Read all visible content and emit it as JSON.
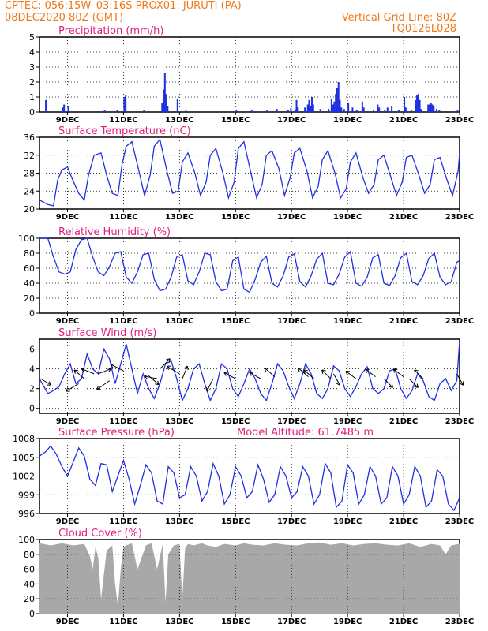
{
  "header": {
    "left_line1": "CPTEC:   056:15W–03:16S   PROX01: JURUTI (PA)",
    "left_line2": "08DEC2020 80Z (GMT)",
    "right_line2": "Vertical Grid Line: 80Z",
    "right_line3": "TQ0126L028"
  },
  "colors": {
    "header_text": "#f07818",
    "panel_title": "#e0207a",
    "series_line": "#2030e0",
    "bar": "#2030e0",
    "cloud_fill": "#a8a8a8",
    "arrow": "#000000"
  },
  "shared_x_tick_labels": [
    "9DEC",
    "11DEC",
    "13DEC",
    "15DEC",
    "17DEC",
    "19DEC",
    "21DEC",
    "23DEC"
  ],
  "chart_data": [
    {
      "id": "precip",
      "type": "bar",
      "title": "Precipitation  (mm/h)",
      "x_start_day": 8.3,
      "step_days": 0.05,
      "xlim": [
        8.0,
        23.0
      ],
      "ylim": [
        0,
        5
      ],
      "yticks": [
        0,
        1,
        2,
        3,
        4,
        5
      ],
      "bars": [
        [
          8.2,
          0.8
        ],
        [
          8.8,
          0.3
        ],
        [
          8.85,
          0.5
        ],
        [
          9.0,
          0.4
        ],
        [
          10.3,
          0.1
        ],
        [
          10.75,
          0.15
        ],
        [
          11.0,
          1.0
        ],
        [
          11.05,
          1.1
        ],
        [
          11.7,
          0.1
        ],
        [
          12.35,
          0.6
        ],
        [
          12.4,
          1.5
        ],
        [
          12.45,
          2.6
        ],
        [
          12.5,
          1.2
        ],
        [
          12.55,
          0.4
        ],
        [
          12.9,
          0.9
        ],
        [
          13.2,
          0.1
        ],
        [
          15.0,
          0.1
        ],
        [
          15.55,
          0.1
        ],
        [
          16.1,
          0.1
        ],
        [
          16.45,
          0.2
        ],
        [
          16.85,
          0.15
        ],
        [
          16.95,
          0.25
        ],
        [
          17.1,
          0.1
        ],
        [
          17.15,
          0.8
        ],
        [
          17.2,
          0.3
        ],
        [
          17.45,
          0.3
        ],
        [
          17.55,
          0.5
        ],
        [
          17.6,
          0.8
        ],
        [
          17.65,
          0.4
        ],
        [
          17.7,
          1.0
        ],
        [
          17.75,
          0.5
        ],
        [
          18.0,
          0.2
        ],
        [
          18.3,
          0.2
        ],
        [
          18.4,
          0.9
        ],
        [
          18.45,
          0.5
        ],
        [
          18.5,
          0.7
        ],
        [
          18.55,
          1.2
        ],
        [
          18.6,
          1.6
        ],
        [
          18.65,
          2.0
        ],
        [
          18.7,
          0.8
        ],
        [
          18.75,
          0.3
        ],
        [
          18.85,
          0.2
        ],
        [
          19.0,
          0.6
        ],
        [
          19.15,
          0.3
        ],
        [
          19.3,
          0.15
        ],
        [
          19.5,
          0.7
        ],
        [
          19.55,
          0.3
        ],
        [
          19.9,
          0.1
        ],
        [
          20.05,
          0.5
        ],
        [
          20.1,
          0.3
        ],
        [
          20.3,
          0.1
        ],
        [
          20.4,
          0.3
        ],
        [
          20.55,
          0.4
        ],
        [
          20.8,
          0.15
        ],
        [
          21.0,
          1.0
        ],
        [
          21.05,
          0.3
        ],
        [
          21.25,
          0.1
        ],
        [
          21.4,
          0.8
        ],
        [
          21.45,
          1.1
        ],
        [
          21.5,
          1.2
        ],
        [
          21.55,
          0.8
        ],
        [
          21.6,
          0.2
        ],
        [
          21.85,
          0.5
        ],
        [
          21.9,
          0.5
        ],
        [
          21.95,
          0.6
        ],
        [
          22.0,
          0.5
        ],
        [
          22.05,
          0.4
        ],
        [
          22.15,
          0.2
        ],
        [
          22.25,
          0.15
        ],
        [
          22.9,
          0.1
        ]
      ]
    },
    {
      "id": "temp",
      "type": "line",
      "title": "Surface Temperature  (nC)",
      "xlim": [
        8.0,
        23.0
      ],
      "ylim": [
        20,
        36
      ],
      "yticks": [
        20,
        24,
        28,
        32,
        36
      ],
      "x": [
        8.0,
        8.3,
        8.5,
        8.65,
        8.8,
        9.0,
        9.15,
        9.4,
        9.6,
        9.75,
        9.95,
        10.2,
        10.4,
        10.6,
        10.8,
        10.95,
        11.1,
        11.3,
        11.55,
        11.75,
        11.95,
        12.1,
        12.3,
        12.55,
        12.75,
        12.95,
        13.1,
        13.3,
        13.55,
        13.75,
        13.95,
        14.1,
        14.3,
        14.55,
        14.75,
        14.95,
        15.1,
        15.3,
        15.55,
        15.75,
        15.95,
        16.1,
        16.3,
        16.55,
        16.75,
        16.95,
        17.1,
        17.3,
        17.55,
        17.75,
        17.95,
        18.1,
        18.3,
        18.55,
        18.75,
        18.95,
        19.1,
        19.3,
        19.55,
        19.75,
        19.95,
        20.1,
        20.3,
        20.55,
        20.75,
        20.95,
        21.1,
        21.3,
        21.55,
        21.75,
        21.95,
        22.1,
        22.3,
        22.55,
        22.75,
        22.95,
        23.0
      ],
      "y": [
        22.0,
        21.0,
        20.7,
        26.5,
        28.7,
        29.4,
        27.0,
        23.5,
        22.0,
        27.5,
        32.0,
        32.5,
        27.5,
        23.5,
        23.0,
        30.0,
        34.0,
        35.0,
        28.5,
        23.0,
        27.5,
        34.0,
        35.5,
        28.5,
        23.5,
        24.0,
        30.5,
        32.5,
        28.0,
        23.0,
        26.0,
        32.0,
        33.5,
        28.0,
        22.5,
        26.0,
        33.5,
        35.0,
        28.0,
        22.5,
        25.5,
        32.0,
        33.0,
        29.0,
        23.0,
        27.0,
        32.5,
        33.5,
        28.5,
        22.5,
        25.0,
        31.0,
        33.0,
        28.0,
        22.5,
        24.5,
        30.5,
        32.5,
        27.0,
        23.5,
        25.5,
        31.0,
        32.0,
        27.0,
        23.0,
        26.0,
        31.5,
        32.0,
        27.5,
        23.5,
        25.5,
        31.0,
        31.5,
        26.5,
        23.0,
        28.5,
        32.5
      ]
    },
    {
      "id": "rh",
      "type": "line",
      "title": "Relative Humidity  (%)",
      "xlim": [
        8.0,
        23.0
      ],
      "ylim": [
        0,
        100
      ],
      "yticks": [
        0,
        20,
        40,
        60,
        80,
        100
      ],
      "x": [
        8.0,
        8.1,
        8.3,
        8.5,
        8.7,
        8.9,
        9.1,
        9.3,
        9.5,
        9.7,
        9.9,
        10.1,
        10.3,
        10.5,
        10.7,
        10.9,
        11.1,
        11.3,
        11.5,
        11.7,
        11.9,
        12.1,
        12.3,
        12.5,
        12.7,
        12.9,
        13.1,
        13.3,
        13.5,
        13.7,
        13.9,
        14.1,
        14.3,
        14.5,
        14.7,
        14.9,
        15.1,
        15.3,
        15.5,
        15.7,
        15.9,
        16.1,
        16.3,
        16.5,
        16.7,
        16.9,
        17.1,
        17.3,
        17.5,
        17.7,
        17.9,
        18.1,
        18.3,
        18.5,
        18.7,
        18.9,
        19.1,
        19.3,
        19.5,
        19.7,
        19.9,
        20.1,
        20.3,
        20.5,
        20.7,
        20.9,
        21.1,
        21.3,
        21.5,
        21.7,
        21.9,
        22.1,
        22.3,
        22.5,
        22.7,
        22.9,
        23.0
      ],
      "y": [
        100,
        100,
        100,
        75,
        55,
        52,
        55,
        85,
        98,
        100,
        75,
        55,
        50,
        62,
        80,
        82,
        48,
        40,
        55,
        78,
        80,
        45,
        30,
        32,
        48,
        75,
        78,
        43,
        38,
        55,
        80,
        78,
        42,
        30,
        32,
        70,
        75,
        32,
        28,
        45,
        68,
        76,
        40,
        35,
        50,
        75,
        79,
        42,
        35,
        50,
        72,
        80,
        40,
        38,
        52,
        75,
        82,
        40,
        36,
        48,
        74,
        78,
        40,
        37,
        50,
        74,
        80,
        42,
        38,
        50,
        73,
        80,
        48,
        38,
        42,
        68,
        70
      ]
    },
    {
      "id": "wind",
      "type": "line",
      "title": "Surface Wind  (m/s)",
      "xlim": [
        8.0,
        23.0
      ],
      "ylim": [
        -0.5,
        7
      ],
      "yticks": [
        0,
        2,
        4,
        6
      ],
      "x": [
        8.0,
        8.1,
        8.3,
        8.5,
        8.7,
        8.9,
        9.1,
        9.3,
        9.5,
        9.7,
        9.9,
        10.1,
        10.3,
        10.5,
        10.7,
        10.9,
        11.1,
        11.3,
        11.5,
        11.7,
        11.9,
        12.1,
        12.3,
        12.5,
        12.7,
        12.9,
        13.1,
        13.3,
        13.5,
        13.7,
        13.9,
        14.1,
        14.3,
        14.5,
        14.7,
        14.9,
        15.1,
        15.3,
        15.5,
        15.7,
        15.9,
        16.1,
        16.3,
        16.5,
        16.7,
        16.9,
        17.1,
        17.3,
        17.5,
        17.7,
        17.9,
        18.1,
        18.3,
        18.5,
        18.7,
        18.9,
        19.1,
        19.3,
        19.5,
        19.7,
        19.9,
        20.1,
        20.3,
        20.5,
        20.7,
        20.9,
        21.1,
        21.3,
        21.5,
        21.7,
        21.9,
        22.1,
        22.3,
        22.5,
        22.7,
        22.9,
        23.0
      ],
      "y": [
        3.0,
        2.5,
        1.5,
        1.8,
        2.2,
        3.5,
        4.5,
        2.5,
        3.0,
        5.5,
        4.0,
        3.5,
        6.0,
        5.0,
        2.5,
        4.5,
        6.5,
        4.0,
        1.5,
        3.5,
        2.0,
        1.0,
        2.5,
        4.5,
        4.8,
        3.0,
        0.8,
        2.0,
        4.0,
        4.5,
        2.5,
        0.8,
        2.0,
        4.5,
        4.0,
        2.0,
        1.2,
        2.5,
        4.0,
        3.0,
        1.5,
        0.8,
        2.5,
        4.5,
        3.8,
        2.2,
        1.0,
        2.5,
        4.5,
        3.5,
        1.5,
        1.0,
        2.0,
        4.3,
        3.8,
        2.0,
        1.2,
        2.2,
        3.5,
        4.2,
        2.0,
        1.5,
        2.0,
        3.8,
        4.0,
        2.0,
        1.0,
        1.8,
        3.5,
        2.8,
        1.2,
        0.8,
        2.5,
        3.0,
        1.8,
        2.8,
        6.8
      ]
    },
    {
      "id": "pressure",
      "type": "line",
      "title": "Surface Pressure  (hPa)",
      "annotation": "Model Altitude: 61.7485 m",
      "xlim": [
        8.0,
        23.0
      ],
      "ylim": [
        996,
        1008
      ],
      "yticks": [
        996,
        999,
        1002,
        1005,
        1008
      ],
      "x": [
        8.0,
        8.2,
        8.4,
        8.6,
        8.8,
        9.0,
        9.2,
        9.4,
        9.6,
        9.8,
        10.0,
        10.2,
        10.4,
        10.6,
        10.8,
        11.0,
        11.2,
        11.4,
        11.6,
        11.8,
        12.0,
        12.2,
        12.4,
        12.6,
        12.8,
        13.0,
        13.2,
        13.4,
        13.6,
        13.8,
        14.0,
        14.2,
        14.4,
        14.6,
        14.8,
        15.0,
        15.2,
        15.4,
        15.6,
        15.8,
        16.0,
        16.2,
        16.4,
        16.6,
        16.8,
        17.0,
        17.2,
        17.4,
        17.6,
        17.8,
        18.0,
        18.2,
        18.4,
        18.6,
        18.8,
        19.0,
        19.2,
        19.4,
        19.6,
        19.8,
        20.0,
        20.2,
        20.4,
        20.6,
        20.8,
        21.0,
        21.2,
        21.4,
        21.6,
        21.8,
        22.0,
        22.2,
        22.4,
        22.6,
        22.8,
        23.0
      ],
      "y": [
        1005.2,
        1005.8,
        1006.8,
        1005.5,
        1003.5,
        1002.0,
        1004.2,
        1006.5,
        1005.2,
        1001.5,
        1000.5,
        1004.0,
        1003.8,
        999.5,
        1002.0,
        1004.5,
        1001.5,
        997.5,
        1000.5,
        1003.8,
        1002.5,
        998.0,
        997.5,
        1003.5,
        1002.5,
        998.5,
        999.0,
        1003.5,
        1002.0,
        998.0,
        999.5,
        1004.0,
        1002.0,
        997.5,
        999.0,
        1003.5,
        1002.0,
        998.5,
        999.5,
        1003.8,
        1001.5,
        997.8,
        999.0,
        1003.5,
        1002.0,
        998.5,
        999.5,
        1003.5,
        1002.0,
        997.5,
        999.0,
        1004.0,
        1002.5,
        997.0,
        998.0,
        1003.8,
        1002.5,
        997.5,
        999.0,
        1003.5,
        1002.0,
        997.5,
        998.5,
        1003.5,
        1002.0,
        997.5,
        999.0,
        1003.5,
        1002.0,
        997.0,
        998.0,
        1003.0,
        1002.0,
        997.5,
        996.5,
        998.5
      ]
    },
    {
      "id": "cloud",
      "type": "area",
      "title": "Cloud Cover  (%)",
      "xlim": [
        8.0,
        23.0
      ],
      "ylim": [
        0,
        100
      ],
      "yticks": [
        0,
        20,
        40,
        60,
        80,
        100
      ],
      "x": [
        8.0,
        8.4,
        8.8,
        9.2,
        9.6,
        9.8,
        9.9,
        10.0,
        10.1,
        10.2,
        10.4,
        10.6,
        10.7,
        10.8,
        10.9,
        11.0,
        11.1,
        11.3,
        11.5,
        11.8,
        12.0,
        12.2,
        12.4,
        12.5,
        12.6,
        12.8,
        13.0,
        13.1,
        13.2,
        13.3,
        13.5,
        13.8,
        14.0,
        14.3,
        14.6,
        15.0,
        15.3,
        15.6,
        16.0,
        16.4,
        16.8,
        17.2,
        17.6,
        18.0,
        18.4,
        18.8,
        19.2,
        19.6,
        20.0,
        20.4,
        20.8,
        21.2,
        21.6,
        22.0,
        22.3,
        22.5,
        22.7,
        23.0
      ],
      "y": [
        95,
        92,
        95,
        92,
        94,
        78,
        60,
        90,
        75,
        20,
        85,
        92,
        40,
        10,
        60,
        90,
        92,
        95,
        60,
        92,
        95,
        60,
        94,
        15,
        80,
        92,
        94,
        20,
        88,
        94,
        92,
        95,
        92,
        90,
        94,
        92,
        95,
        93,
        92,
        95,
        93,
        92,
        95,
        96,
        93,
        95,
        92,
        94,
        95,
        93,
        92,
        95,
        90,
        94,
        92,
        80,
        92,
        94
      ]
    }
  ],
  "wind_vectors": [
    {
      "day": 8.05,
      "u": 0.8,
      "v": -0.5,
      "speed": 3.0
    },
    {
      "day": 9.4,
      "u": -1.0,
      "v": -0.6,
      "speed": 2.5
    },
    {
      "day": 9.6,
      "u": -0.8,
      "v": 0.7,
      "speed": 3.0
    },
    {
      "day": 9.95,
      "u": -1.0,
      "v": 0.4,
      "speed": 3.5
    },
    {
      "day": 10.1,
      "u": 1.0,
      "v": 0.4,
      "speed": 3.5
    },
    {
      "day": 10.5,
      "u": -1.0,
      "v": -0.7,
      "speed": 2.8
    },
    {
      "day": 11.0,
      "u": -1.0,
      "v": 0.5,
      "speed": 3.8
    },
    {
      "day": 11.9,
      "u": 0.8,
      "v": -0.7,
      "speed": 3.3
    },
    {
      "day": 12.2,
      "u": -1.0,
      "v": 0.2,
      "speed": 3.0
    },
    {
      "day": 12.3,
      "u": 0.8,
      "v": 0.8,
      "speed": 4.0
    },
    {
      "day": 13.0,
      "u": -1.0,
      "v": 0.6,
      "speed": 3.5
    },
    {
      "day": 13.1,
      "u": 0.4,
      "v": 1.0,
      "speed": 3.0
    },
    {
      "day": 14.2,
      "u": -0.5,
      "v": -1.0,
      "speed": 3.0
    },
    {
      "day": 15.0,
      "u": -0.9,
      "v": 0.5,
      "speed": 3.0
    },
    {
      "day": 15.9,
      "u": -0.9,
      "v": 0.5,
      "speed": 3.0
    },
    {
      "day": 16.4,
      "u": -0.8,
      "v": 0.7,
      "speed": 3.2
    },
    {
      "day": 17.6,
      "u": -0.8,
      "v": 0.7,
      "speed": 3.2
    },
    {
      "day": 17.8,
      "u": -0.8,
      "v": 0.7,
      "speed": 3.0
    },
    {
      "day": 18.4,
      "u": -0.7,
      "v": 0.7,
      "speed": 3.0
    },
    {
      "day": 18.5,
      "u": 0.5,
      "v": -0.9,
      "speed": 3.5
    },
    {
      "day": 19.3,
      "u": -0.8,
      "v": 0.6,
      "speed": 3.0
    },
    {
      "day": 20.0,
      "u": -0.8,
      "v": 0.6,
      "speed": 3.2
    },
    {
      "day": 20.3,
      "u": 0.7,
      "v": -0.7,
      "speed": 3.0
    },
    {
      "day": 21.0,
      "u": -0.8,
      "v": 0.6,
      "speed": 3.2
    },
    {
      "day": 21.2,
      "u": 0.7,
      "v": -0.7,
      "speed": 3.0
    },
    {
      "day": 21.7,
      "u": -0.7,
      "v": 0.7,
      "speed": 3.0
    },
    {
      "day": 22.9,
      "u": 0.5,
      "v": -0.9,
      "speed": 3.5
    }
  ]
}
